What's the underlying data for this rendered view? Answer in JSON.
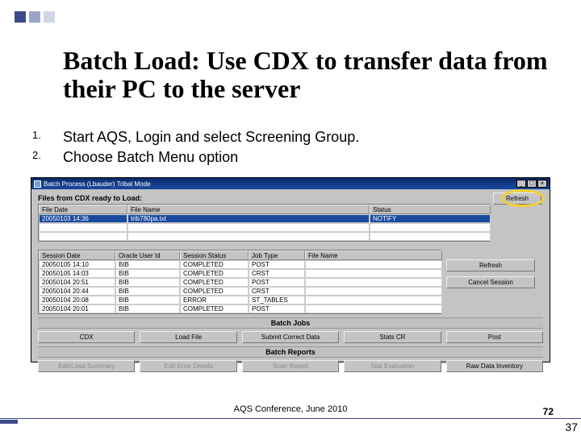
{
  "slide": {
    "title": "Batch Load: Use CDX to transfer data from their PC to the server",
    "steps": [
      "Start AQS, Login and select Screening Group.",
      "Choose Batch Menu option"
    ],
    "footer": "AQS Conference, June 2010",
    "page": "72",
    "page_outer": "37"
  },
  "app": {
    "titlebar": "Batch Process (Lbauder) Tribal Mode",
    "refresh_btn": "Refresh",
    "cdx_label": "Files from CDX  ready to Load:",
    "grid1": {
      "headers": [
        "File Date",
        "File Name",
        "Status"
      ],
      "rows": [
        [
          "20050103 14:36",
          "trib780pa.txt",
          "NOTIFY"
        ]
      ]
    },
    "grid2": {
      "headers": [
        "Session Date",
        "Oracle User Id",
        "Session Status",
        "Job Type",
        "File Name"
      ],
      "rows": [
        [
          "20050105 14:10",
          "BIB",
          "COMPLETED",
          "POST",
          ""
        ],
        [
          "20050105 14:03",
          "BIB",
          "COMPLETED",
          "CRST",
          ""
        ],
        [
          "20050104 20:51",
          "BIB",
          "COMPLETED",
          "POST",
          ""
        ],
        [
          "20050104 20:44",
          "BIB",
          "COMPLETED",
          "CRST",
          ""
        ],
        [
          "20050104 20:08",
          "BIB",
          "ERROR",
          "ST_TABLES",
          ""
        ],
        [
          "20050104 20:01",
          "BIB",
          "COMPLETED",
          "POST",
          ""
        ]
      ]
    },
    "side_buttons": [
      "Refresh",
      "Cancel Session"
    ],
    "batch_jobs_label": "Batch Jobs",
    "batch_jobs_buttons": [
      "CDX",
      "Load File",
      "Submit Correct Data",
      "Stats CR",
      "Post"
    ],
    "batch_reports_label": "Batch Reports",
    "batch_reports_buttons": [
      "Edit/Load Summary",
      "Edit Error Details",
      "Scan Report",
      "Stat Evaluation",
      "Raw Data Inventory"
    ]
  },
  "colors": {
    "titlebar_bg": "#1a4aa0",
    "app_bg": "#c4c4c4",
    "highlight": "#f5d030"
  }
}
